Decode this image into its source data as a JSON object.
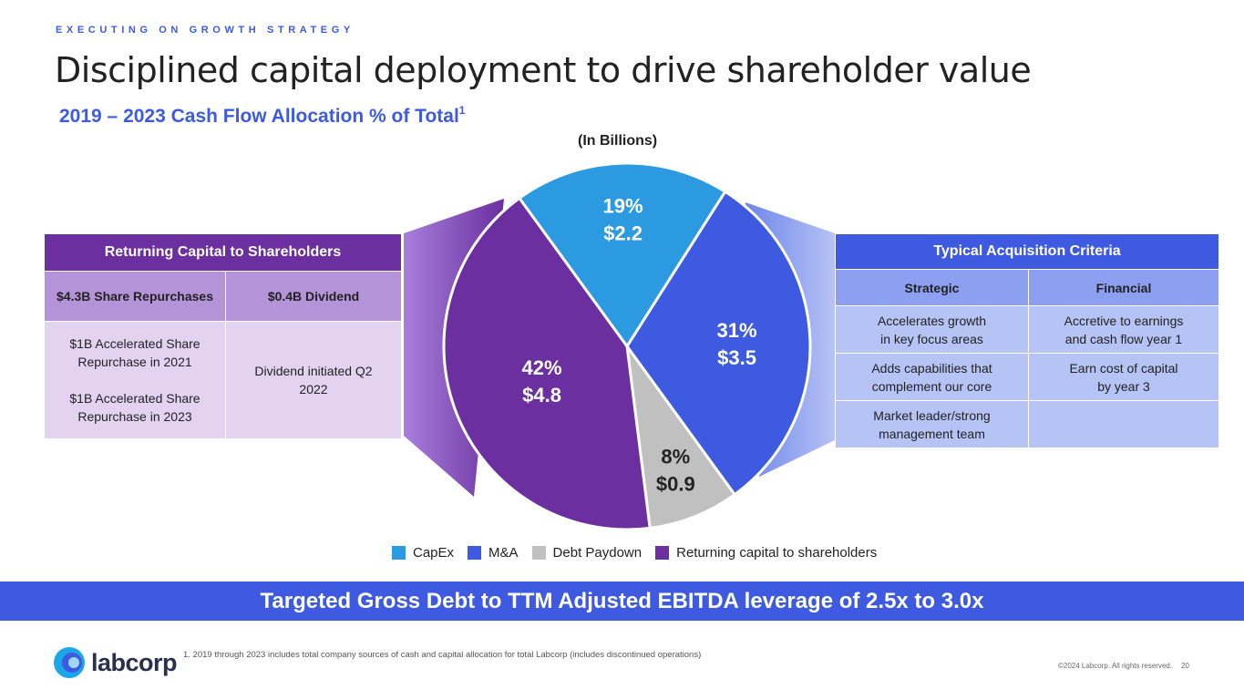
{
  "header": {
    "eyebrow": "EXECUTING ON GROWTH STRATEGY",
    "title": "Disciplined capital deployment to drive shareholder value",
    "subtitle": "2019 – 2023 Cash Flow Allocation % of Total",
    "subtitle_sup": "1",
    "unit_label": "(In Billions)"
  },
  "returning_capital": {
    "header": "Returning Capital to Shareholders",
    "col1_header": "$4.3B Share Repurchases",
    "col2_header": "$0.4B Dividend",
    "col1_line1": "$1B Accelerated Share",
    "col1_line2": "Repurchase in 2021",
    "col1_line3": "$1B Accelerated Share",
    "col1_line4": "Repurchase in 2023",
    "col2_line1": "Dividend initiated Q2",
    "col2_line2": "2022"
  },
  "acquisition_criteria": {
    "header": "Typical Acquisition Criteria",
    "col1_header": "Strategic",
    "col2_header": "Financial",
    "rows": [
      {
        "strategic_1": "Accelerates growth",
        "strategic_2": "in key focus areas",
        "financial_1": "Accretive to earnings",
        "financial_2": "and cash flow year 1"
      },
      {
        "strategic_1": "Adds capabilities that",
        "strategic_2": "complement our core",
        "financial_1": "Earn cost of capital",
        "financial_2": "by year 3"
      },
      {
        "strategic_1": "Market leader/strong",
        "strategic_2": "management team",
        "financial_1": "",
        "financial_2": ""
      }
    ]
  },
  "chart_data": {
    "type": "pie",
    "title": "2019 – 2023 Cash Flow Allocation % of Total",
    "unit": "(In Billions)",
    "slices": [
      {
        "name": "CapEx",
        "percent": 19,
        "percent_label": "19%",
        "value": 2.2,
        "value_label": "$2.2",
        "color": "#2b9ae0"
      },
      {
        "name": "M&A",
        "percent": 31,
        "percent_label": "31%",
        "value": 3.5,
        "value_label": "$3.5",
        "color": "#3d5ae0"
      },
      {
        "name": "Debt Paydown",
        "percent": 8,
        "percent_label": "8%",
        "value": 0.9,
        "value_label": "$0.9",
        "color": "#c0c0c0"
      },
      {
        "name": "Returning capital to shareholders",
        "percent": 42,
        "percent_label": "42%",
        "value": 4.8,
        "value_label": "$4.8",
        "color": "#6b2f9f"
      }
    ],
    "legend": [
      "CapEx",
      "M&A",
      "Debt Paydown",
      "Returning capital to shareholders"
    ],
    "legend_position": "bottom"
  },
  "banner": "Targeted Gross Debt to TTM Adjusted EBITDA leverage of 2.5x to 3.0x",
  "footer": {
    "logo_text": "labcorp",
    "footnote": "1.   2019 through 2023 includes total company sources of cash and capital allocation for total Labcorp (includes discontinued operations)",
    "copyright": "©2024 Labcorp. All rights reserved.",
    "page_number": "20"
  },
  "colors": {
    "accent_blue": "#3d5ae0",
    "purple": "#6b2f9f",
    "capex": "#2b9ae0",
    "grey": "#c0c0c0"
  }
}
